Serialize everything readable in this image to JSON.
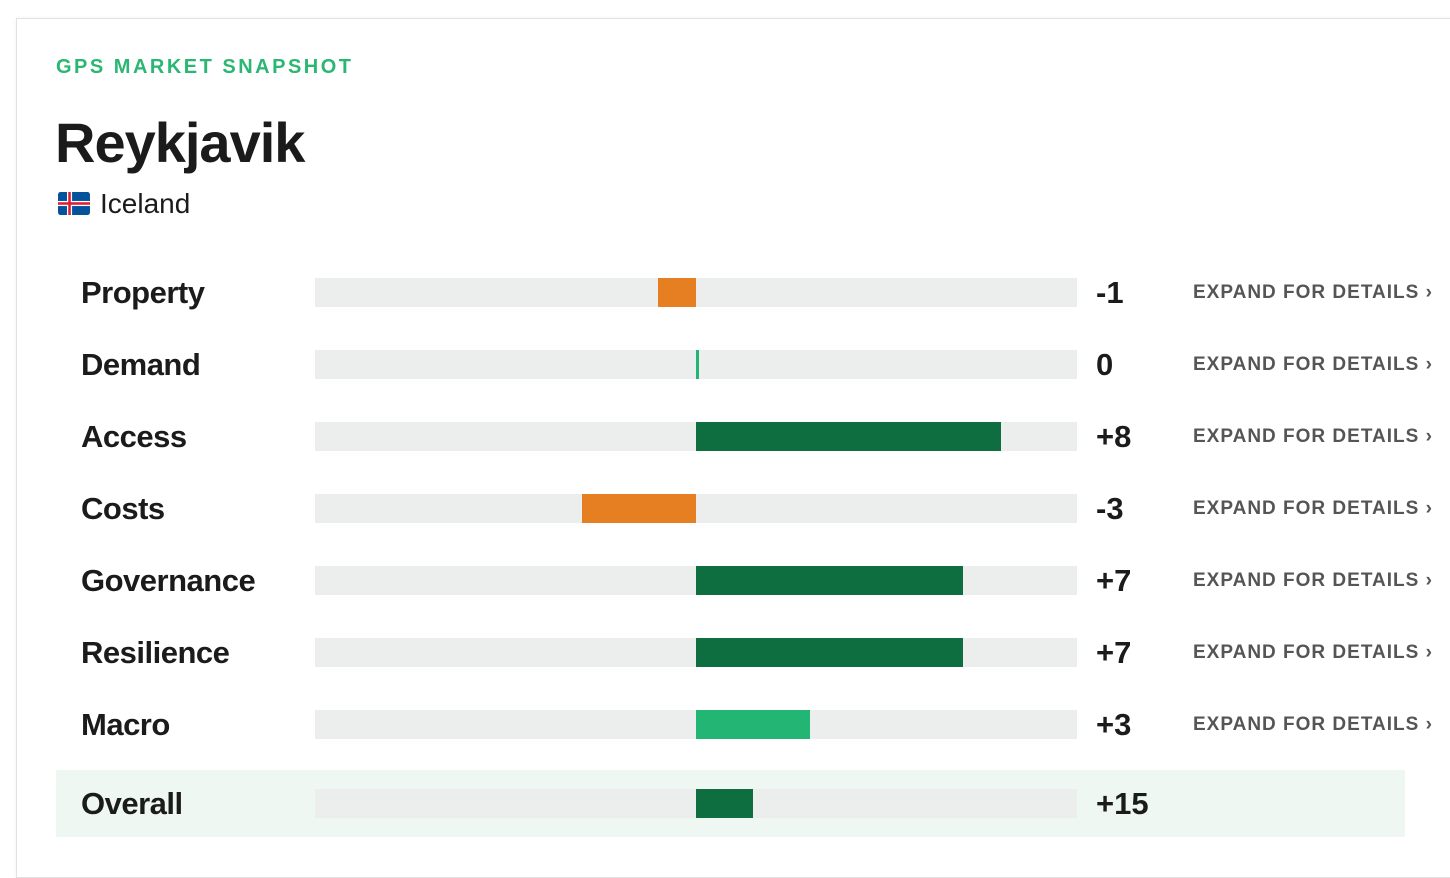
{
  "header": {
    "eyebrow": "GPS MARKET SNAPSHOT",
    "title": "Reykjavik",
    "country": "Iceland"
  },
  "scores": {
    "xlim": [
      -10,
      10
    ],
    "link": "EXPAND FOR DETAILS ›",
    "rows": [
      {
        "label": "Property",
        "value": -1,
        "value_label": "-1",
        "color": "#e67e22"
      },
      {
        "label": "Demand",
        "value": 0,
        "value_label": "0",
        "color": "#22b573"
      },
      {
        "label": "Access",
        "value": 8,
        "value_label": "+8",
        "color": "#0e6e3f"
      },
      {
        "label": "Costs",
        "value": -3,
        "value_label": "-3",
        "color": "#e67e22"
      },
      {
        "label": "Governance",
        "value": 7,
        "value_label": "+7",
        "color": "#0e6e3f"
      },
      {
        "label": "Resilience",
        "value": 7,
        "value_label": "+7",
        "color": "#0e6e3f"
      },
      {
        "label": "Macro",
        "value": 3,
        "value_label": "+3",
        "color": "#22b573"
      }
    ]
  },
  "overall": {
    "label": "Overall",
    "value": 15,
    "value_label": "+15",
    "color": "#0e6e3f",
    "xlim": [
      -100,
      100
    ]
  }
}
